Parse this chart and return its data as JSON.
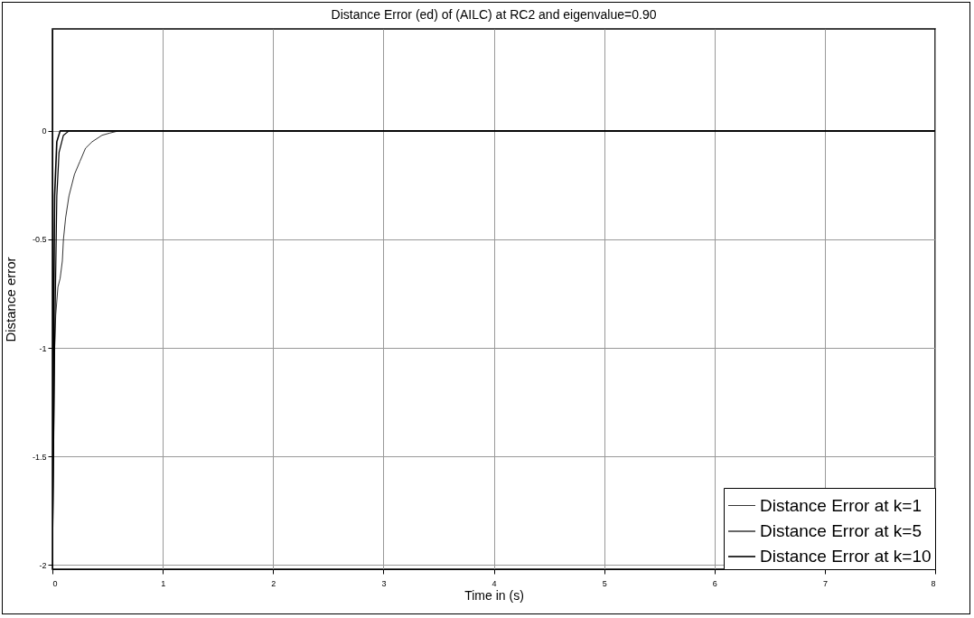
{
  "chart_data": {
    "type": "line",
    "title": "Distance Error (ed) of (AILC) at RC2 and eigenvalue=0.90",
    "xlabel": "Time in (s)",
    "ylabel": "Distance error",
    "xlim": [
      0,
      8
    ],
    "ylim": [
      -2.02,
      0.47
    ],
    "xticks": [
      0,
      1,
      2,
      3,
      4,
      5,
      6,
      7,
      8
    ],
    "yticks": [
      -2,
      -1.5,
      -1,
      -0.5,
      0
    ],
    "grid": true,
    "legend": "bottom right",
    "line_style": "solid",
    "marker": "none",
    "series": [
      {
        "name": "Distance Error at k=1",
        "color": "#000000",
        "x": [
          0,
          0.01,
          0.02,
          0.03,
          0.05,
          0.07,
          0.09,
          0.1,
          0.12,
          0.15,
          0.2,
          0.25,
          0.3,
          0.36,
          0.45,
          0.52,
          0.6,
          8
        ],
        "values": [
          -2,
          -1.5,
          -1,
          -0.85,
          -0.72,
          -0.68,
          -0.6,
          -0.5,
          -0.4,
          -0.3,
          -0.2,
          -0.14,
          -0.08,
          -0.05,
          -0.02,
          -0.01,
          0,
          0
        ]
      },
      {
        "name": "Distance Error at k=5",
        "color": "#000000",
        "x": [
          0,
          0.02,
          0.04,
          0.06,
          0.1,
          0.15,
          8
        ],
        "values": [
          -2,
          -1,
          -0.3,
          -0.1,
          -0.02,
          0,
          0
        ]
      },
      {
        "name": "Distance Error at k=10",
        "color": "#000000",
        "x": [
          0,
          0.01,
          0.02,
          0.04,
          0.07,
          8
        ],
        "values": [
          -2,
          -1,
          -0.3,
          -0.05,
          0,
          0
        ]
      }
    ]
  }
}
